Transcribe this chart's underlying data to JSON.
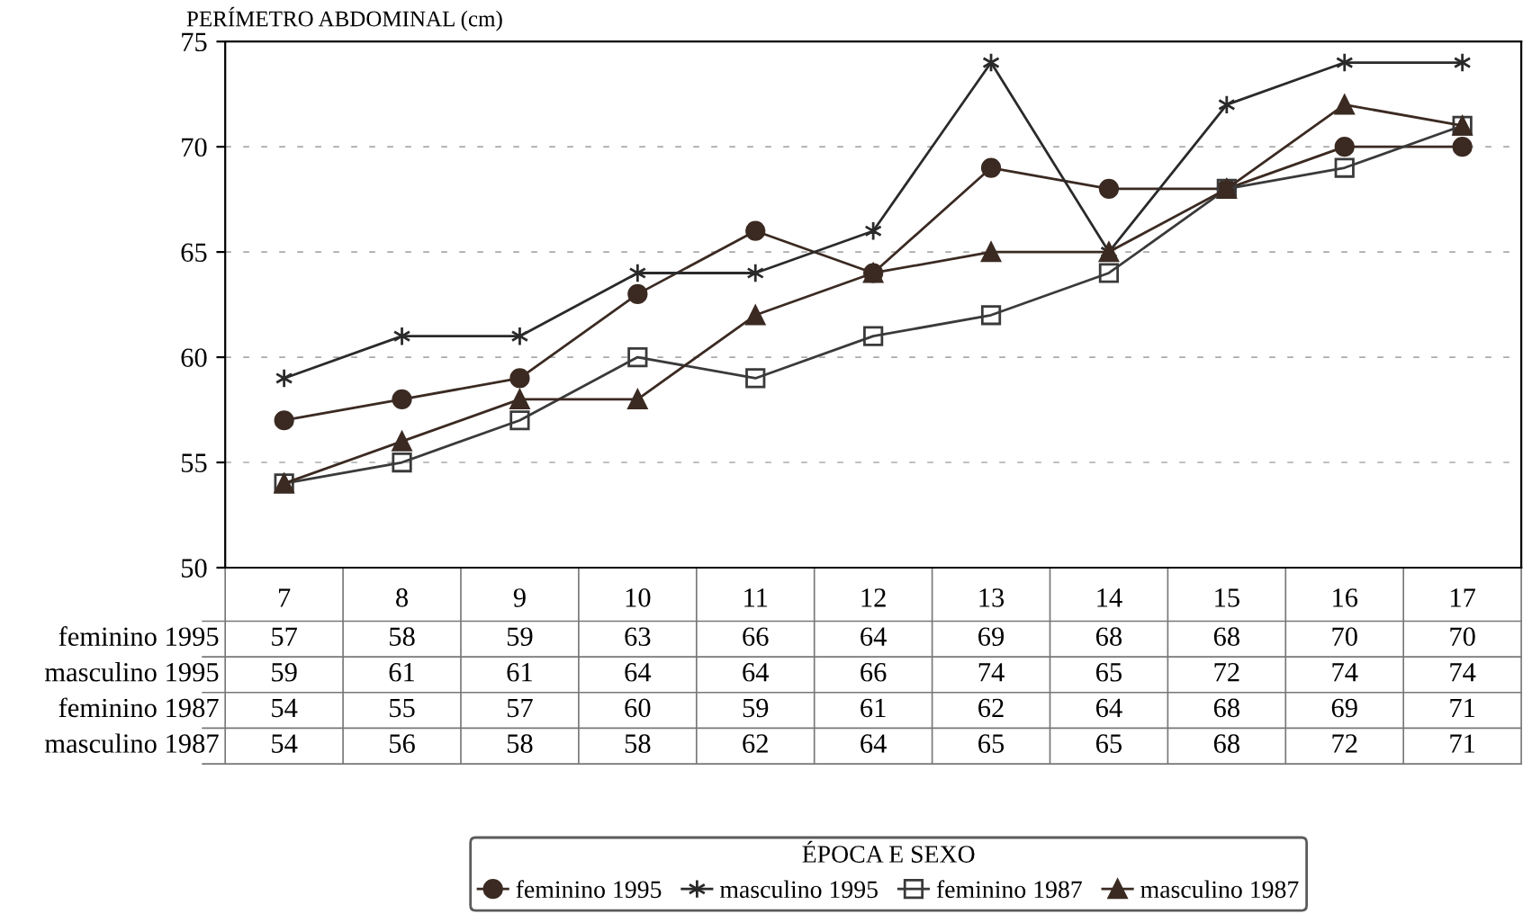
{
  "chart_data": {
    "type": "line",
    "ylabel": "PERÍMETRO ABDOMINAL (cm)",
    "legend_title": "ÉPOCA E SEXO",
    "legend": "bottom",
    "grid": "y",
    "data_labels": true,
    "categories": [
      "7",
      "8",
      "9",
      "10",
      "11",
      "12",
      "13",
      "14",
      "15",
      "16",
      "17"
    ],
    "ylim": [
      50,
      75
    ],
    "yticks": [
      50,
      55,
      60,
      65,
      70,
      75
    ],
    "series": [
      {
        "name": "feminino 1995",
        "color": "#3b2a22",
        "marker": "circle",
        "values": [
          57,
          58,
          59,
          63,
          66,
          64,
          69,
          68,
          68,
          70,
          70
        ]
      },
      {
        "name": "masculino 1995",
        "color": "#2a2a2a",
        "marker": "cross",
        "values": [
          59,
          61,
          61,
          64,
          64,
          66,
          74,
          65,
          72,
          74,
          74
        ]
      },
      {
        "name": "feminino 1987",
        "color": "#3a3a3a",
        "marker": "square",
        "values": [
          54,
          55,
          57,
          60,
          59,
          61,
          62,
          64,
          68,
          69,
          71
        ]
      },
      {
        "name": "masculino 1987",
        "color": "#3b2a22",
        "marker": "triangle",
        "values": [
          54,
          56,
          58,
          58,
          62,
          64,
          65,
          65,
          68,
          72,
          71
        ]
      }
    ]
  }
}
